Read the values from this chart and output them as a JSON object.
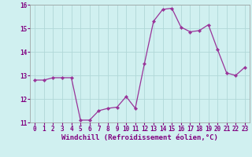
{
  "x": [
    0,
    1,
    2,
    3,
    4,
    5,
    6,
    7,
    8,
    9,
    10,
    11,
    12,
    13,
    14,
    15,
    16,
    17,
    18,
    19,
    20,
    21,
    22,
    23
  ],
  "y": [
    12.8,
    12.8,
    12.9,
    12.9,
    12.9,
    11.1,
    11.1,
    11.5,
    11.6,
    11.65,
    12.1,
    11.6,
    13.5,
    15.3,
    15.8,
    15.85,
    15.05,
    14.85,
    14.9,
    15.15,
    14.1,
    13.1,
    13.0,
    13.35
  ],
  "line_color": "#993399",
  "marker_color": "#993399",
  "bg_color": "#d0f0f0",
  "grid_color": "#b0d8d8",
  "xlabel": "Windchill (Refroidissement éolien,°C)",
  "ylim": [
    11,
    16
  ],
  "xlim": [
    -0.5,
    23.5
  ],
  "yticks": [
    11,
    12,
    13,
    14,
    15,
    16
  ],
  "xticks": [
    0,
    1,
    2,
    3,
    4,
    5,
    6,
    7,
    8,
    9,
    10,
    11,
    12,
    13,
    14,
    15,
    16,
    17,
    18,
    19,
    20,
    21,
    22,
    23
  ],
  "tick_fontsize": 5.5,
  "xlabel_fontsize": 6.5,
  "xlabel_color": "#800080",
  "line_width": 0.9,
  "marker_size": 2.2
}
